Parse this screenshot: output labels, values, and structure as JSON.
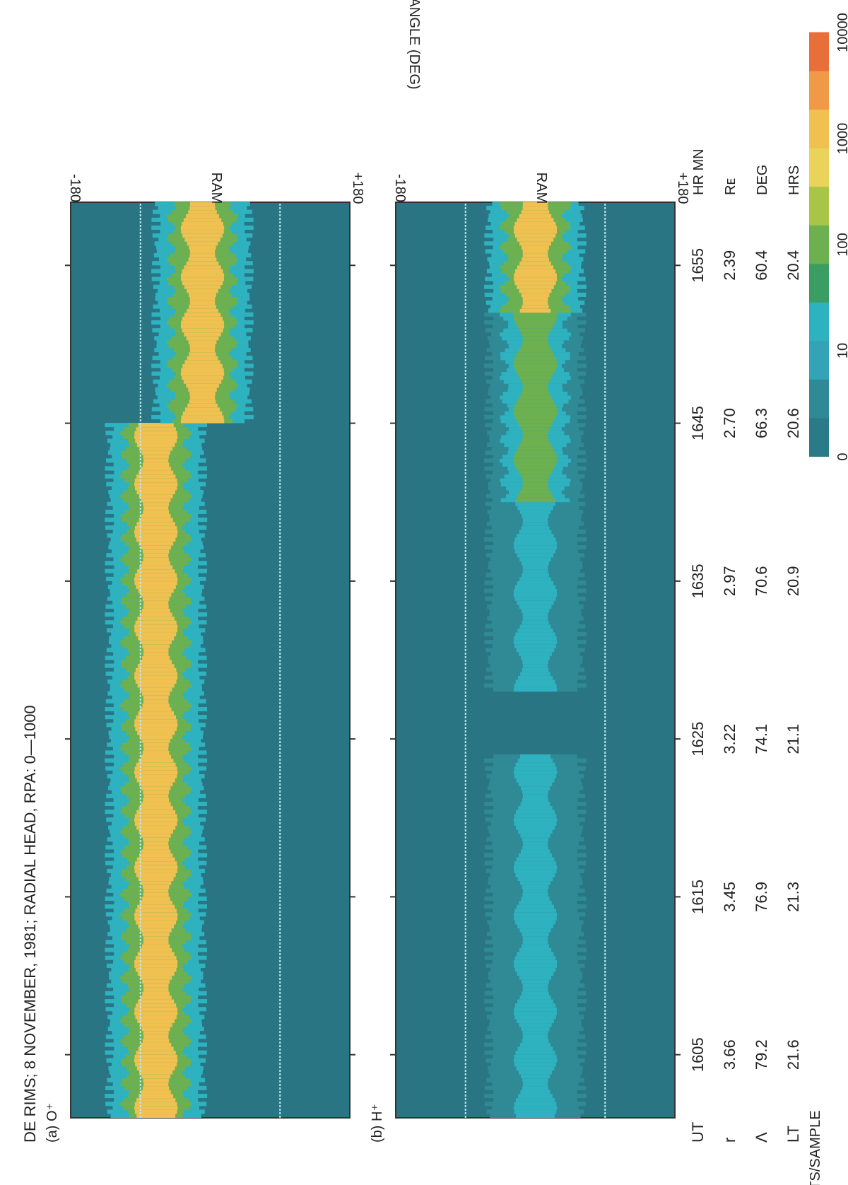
{
  "title": "DE RIMS; 8 NOVEMBER, 1981; RADIAL HEAD, RPA: 0—1000",
  "panels": [
    {
      "label": "(a) O⁺"
    },
    {
      "label": "(b) H⁺"
    }
  ],
  "axis": {
    "spin_angle_label": "SPIN ANGLE (DEG)",
    "ticks_panel_a": [
      "+180",
      "RAM",
      "-180"
    ],
    "ticks_panel_b": [
      "+180",
      "RAM",
      "-180"
    ]
  },
  "time_table": {
    "row_labels": [
      "UT",
      "r",
      "Λ",
      "LT"
    ],
    "unit_labels": [
      "HR MN",
      "Rᴇ",
      "DEG",
      "HRS"
    ],
    "columns": [
      {
        "ut": "1605",
        "r": "3.66",
        "lambda": "79.2",
        "lt": "21.6"
      },
      {
        "ut": "1615",
        "r": "3.45",
        "lambda": "76.9",
        "lt": "21.3"
      },
      {
        "ut": "1625",
        "r": "3.22",
        "lambda": "74.1",
        "lt": "21.1"
      },
      {
        "ut": "1635",
        "r": "2.97",
        "lambda": "70.6",
        "lt": "20.9"
      },
      {
        "ut": "1645",
        "r": "2.70",
        "lambda": "66.3",
        "lt": "20.6"
      },
      {
        "ut": "1655",
        "r": "2.39",
        "lambda": "60.4",
        "lt": "20.4"
      }
    ]
  },
  "colorbar": {
    "label": "COUNTS/SAMPLE",
    "tick_labels": [
      "0",
      "10",
      "100",
      "1000",
      "10000"
    ],
    "colors": [
      "#2a7a88",
      "#2f8a96",
      "#33a3b5",
      "#2fb2c0",
      "#3a9e62",
      "#6cb050",
      "#a8c54a",
      "#e9d35a",
      "#f0c050",
      "#f09a48",
      "#e86e3a"
    ]
  },
  "chart_data": [
    {
      "type": "heatmap",
      "title": "DE RIMS; 8 NOVEMBER, 1981; RADIAL HEAD, RPA: 0—1000",
      "panel": "(a) O⁺",
      "x": "UT (HR MN)",
      "x_ticks": [
        "1605",
        "1615",
        "1625",
        "1635",
        "1645",
        "1655"
      ],
      "xlim": [
        "1601",
        "1659"
      ],
      "ylabel": "SPIN ANGLE (DEG)",
      "ylim": [
        -180,
        180
      ],
      "y_ticks": [
        "+180",
        "RAM",
        "-180"
      ],
      "ram_angle_deg": 0,
      "color_scale": "log counts/sample 0-10000",
      "features": [
        {
          "description_source": "visible color band",
          "ut_start": "1601",
          "ut_end": "1645",
          "angle_center_deg": 70,
          "peak_counts": 1000
        },
        {
          "description_source": "visible color band",
          "ut_start": "1645",
          "ut_end": "1659",
          "angle_center_deg": 10,
          "peak_counts": 1000
        }
      ]
    },
    {
      "type": "heatmap",
      "panel": "(b) H⁺",
      "x": "UT (HR MN)",
      "x_ticks": [
        "1605",
        "1615",
        "1625",
        "1635",
        "1645",
        "1655"
      ],
      "xlim": [
        "1601",
        "1659"
      ],
      "ylabel": "SPIN ANGLE (DEG)",
      "ylim": [
        -180,
        180
      ],
      "y_ticks": [
        "+180",
        "RAM",
        "-180"
      ],
      "ram_angle_deg": 0,
      "color_scale": "log counts/sample 0-10000",
      "features": [
        {
          "ut_start": "1601",
          "ut_end": "1624",
          "angle_center_deg": 0,
          "peak_counts": 10
        },
        {
          "ut_start": "1628",
          "ut_end": "1640",
          "angle_center_deg": 0,
          "peak_counts": 10
        },
        {
          "ut_start": "1640",
          "ut_end": "1652",
          "angle_center_deg": 0,
          "peak_counts": 100
        },
        {
          "ut_start": "1652",
          "ut_end": "1659",
          "angle_center_deg": 0,
          "peak_counts": 1000
        }
      ]
    }
  ]
}
